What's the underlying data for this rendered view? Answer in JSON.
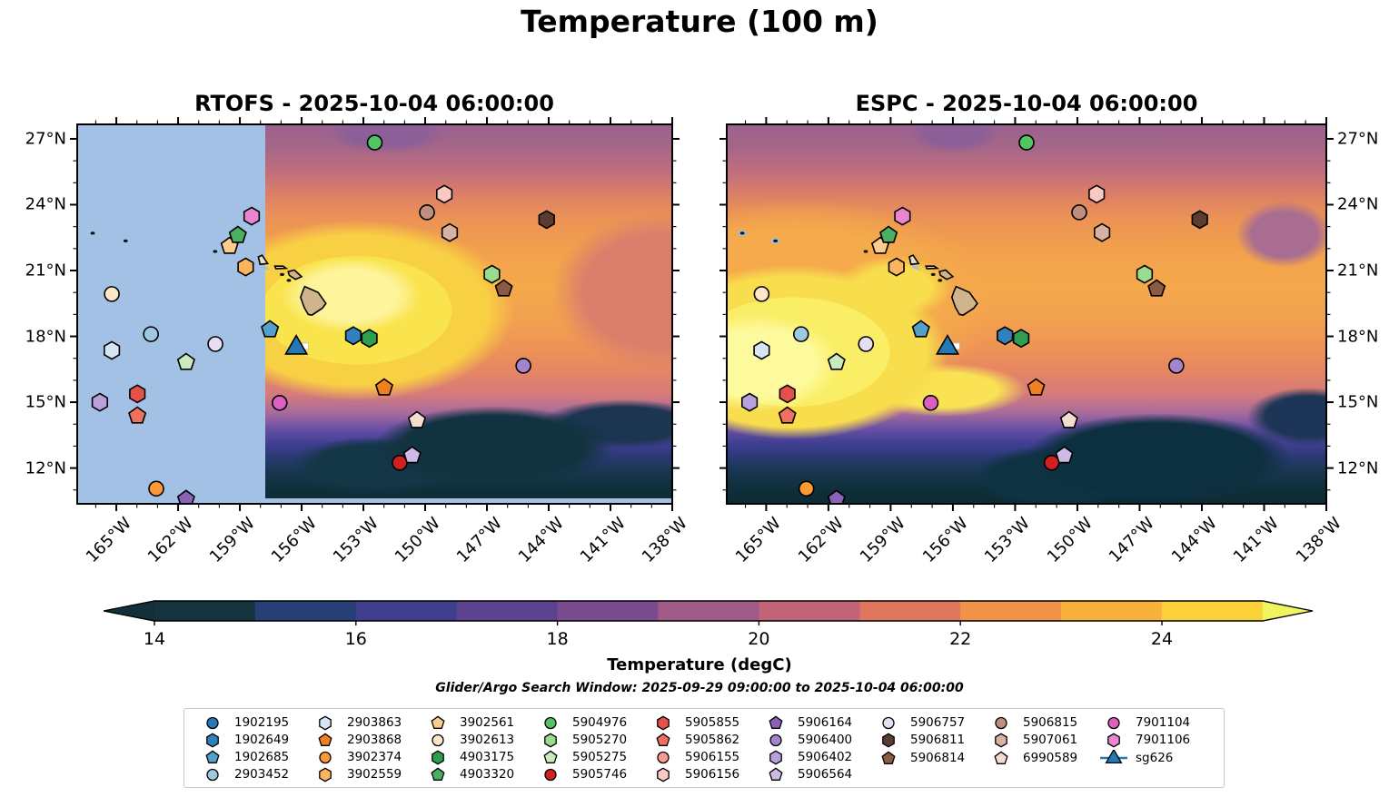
{
  "figure_title": "Temperature (100 m)",
  "panels": [
    {
      "name": "RTOFS",
      "title": "RTOFS - 2025-10-04 06:00:00",
      "model": "RTOFS",
      "valid_time": "2025-10-04 06:00:00",
      "masked": true
    },
    {
      "name": "ESPC",
      "title": "ESPC - 2025-10-04 06:00:00",
      "model": "ESPC",
      "valid_time": "2025-10-04 06:00:00",
      "masked": false
    }
  ],
  "search_window_text": "Glider/Argo Search Window: 2025-09-29 09:00:00 to 2025-10-04 06:00:00",
  "colorbar": {
    "label": "Temperature (degC)",
    "tick_labels": [
      "14",
      "16",
      "18",
      "20",
      "22",
      "24"
    ],
    "tick_values": [
      14,
      16,
      18,
      20,
      22,
      24
    ],
    "range": [
      14,
      25
    ],
    "segment_colors": [
      "#14333c",
      "#263f77",
      "#3f3e8c",
      "#5c428f",
      "#7a4b8e",
      "#a05a87",
      "#c26478",
      "#df765d",
      "#f09247",
      "#f8b13a",
      "#fbd13a"
    ],
    "extend_left_color": "#11303a",
    "extend_right_color": "#eff55e"
  },
  "axes": {
    "lon_tick_labels": [
      "165°W",
      "162°W",
      "159°W",
      "156°W",
      "153°W",
      "150°W",
      "147°W",
      "144°W",
      "141°W",
      "138°W"
    ],
    "lon_tick_values": [
      -165,
      -162,
      -159,
      -156,
      -153,
      -150,
      -147,
      -144,
      -141,
      -138
    ],
    "lon_minor_values": [
      -166,
      -164,
      -163,
      -161,
      -160,
      -158,
      -157,
      -155,
      -154,
      -152,
      -151,
      -149,
      -148,
      -146,
      -145,
      -143,
      -142,
      -140,
      -139
    ],
    "lat_tick_labels": [
      "27°N",
      "24°N",
      "21°N",
      "18°N",
      "15°N",
      "12°N"
    ],
    "lat_tick_values": [
      27,
      24,
      21,
      18,
      15,
      12
    ],
    "lat_minor_values": [
      26,
      25,
      23,
      22,
      20,
      19,
      17,
      16,
      14,
      13,
      11
    ]
  },
  "colors": {
    "rtofs_mask": "#a2c1e4",
    "land": "#d2b48c",
    "small_island": "#e8ddc4",
    "coastline": "#000000",
    "shallow_water": "#93c4e8"
  },
  "legend": {
    "columns": [
      [
        "1902195",
        "1902649",
        "1902685",
        "2903452"
      ],
      [
        "2903863",
        "2903868",
        "3902374",
        "3902559"
      ],
      [
        "3902561",
        "3902613",
        "4903175",
        "4903320"
      ],
      [
        "5904976",
        "5905270",
        "5905275",
        "5905746"
      ],
      [
        "5905855",
        "5905862",
        "5906155",
        "5906156"
      ],
      [
        "5906164",
        "5906400",
        "5906402",
        "5906564"
      ],
      [
        "5906757",
        "5906811",
        "5906814"
      ],
      [
        "5906815",
        "5907061",
        "6990589"
      ],
      [
        "7901104",
        "7901106",
        "sg626"
      ]
    ]
  },
  "chart_data": {
    "type": "heatmap",
    "title": "Temperature (100 m)",
    "units": "degC",
    "colorbar_range": [
      14,
      25
    ],
    "panels": [
      "RTOFS - 2025-10-04 06:00:00",
      "ESPC - 2025-10-04 06:00:00"
    ],
    "lon_range": [
      -166.9,
      -138.0
    ],
    "lat_range": [
      10.37,
      27.66
    ],
    "rtofs_mask_east_edge_lon": -157.77,
    "platforms": [
      {
        "id": "1902195",
        "type": "argo",
        "marker": "circle",
        "color": "#2878b8",
        "lon": null,
        "lat": null,
        "on_map": false
      },
      {
        "id": "1902649",
        "type": "argo",
        "marker": "hexagon",
        "color": "#3181bd",
        "lon": -153.49,
        "lat": 18.03,
        "on_map": true
      },
      {
        "id": "1902685",
        "type": "argo",
        "marker": "pentagon",
        "color": "#54a0cd",
        "lon": -157.54,
        "lat": 18.31,
        "on_map": true
      },
      {
        "id": "2903452",
        "type": "argo",
        "marker": "circle",
        "color": "#9ecae1",
        "lon": -163.32,
        "lat": 18.1,
        "on_map": true
      },
      {
        "id": "2903863",
        "type": "argo",
        "marker": "hexagon",
        "color": "#d6e5f4",
        "lon": -165.22,
        "lat": 17.36,
        "on_map": true
      },
      {
        "id": "2903868",
        "type": "argo",
        "marker": "pentagon",
        "color": "#f07f1e",
        "lon": -151.99,
        "lat": 15.66,
        "on_map": true
      },
      {
        "id": "3902374",
        "type": "argo",
        "marker": "circle",
        "color": "#fb9a35",
        "lon": -163.06,
        "lat": 11.06,
        "on_map": true
      },
      {
        "id": "3902559",
        "type": "argo",
        "marker": "hexagon",
        "color": "#fdb45f",
        "lon": -158.72,
        "lat": 21.16,
        "on_map": true
      },
      {
        "id": "3902561",
        "type": "argo",
        "marker": "pentagon",
        "color": "#fdcc8e",
        "lon": -159.5,
        "lat": 22.11,
        "on_map": true
      },
      {
        "id": "3902613",
        "type": "argo",
        "marker": "circle",
        "color": "#fee6c8",
        "lon": -165.22,
        "lat": 19.93,
        "on_map": true
      },
      {
        "id": "4903175",
        "type": "argo",
        "marker": "hexagon",
        "color": "#2f9e4f",
        "lon": -152.71,
        "lat": 17.91,
        "on_map": true
      },
      {
        "id": "4903320",
        "type": "argo",
        "marker": "pentagon",
        "color": "#4bb062",
        "lon": -159.1,
        "lat": 22.61,
        "on_map": true
      },
      {
        "id": "5904976",
        "type": "argo",
        "marker": "circle",
        "color": "#52c463",
        "lon": -152.45,
        "lat": 26.83,
        "on_map": true
      },
      {
        "id": "5905270",
        "type": "argo",
        "marker": "hexagon",
        "color": "#9adb8d",
        "lon": -146.76,
        "lat": 20.83,
        "on_map": true
      },
      {
        "id": "5905275",
        "type": "argo",
        "marker": "pentagon",
        "color": "#c8ecc0",
        "lon": -161.61,
        "lat": 16.82,
        "on_map": true
      },
      {
        "id": "5905746",
        "type": "argo",
        "marker": "circle",
        "color": "#d21f1f",
        "lon": -151.24,
        "lat": 12.24,
        "on_map": true
      },
      {
        "id": "5905855",
        "type": "argo",
        "marker": "hexagon",
        "color": "#e4504a",
        "lon": -163.98,
        "lat": 15.38,
        "on_map": true
      },
      {
        "id": "5905862",
        "type": "argo",
        "marker": "pentagon",
        "color": "#f07060",
        "lon": -163.98,
        "lat": 14.38,
        "on_map": true
      },
      {
        "id": "5906155",
        "type": "argo",
        "marker": "circle",
        "color": "#f99b92",
        "lon": null,
        "lat": null,
        "on_map": false
      },
      {
        "id": "5906156",
        "type": "argo",
        "marker": "hexagon",
        "color": "#fcc8c2",
        "lon": -149.07,
        "lat": 24.48,
        "on_map": true
      },
      {
        "id": "5906164",
        "type": "argo",
        "marker": "pentagon",
        "color": "#8a63b8",
        "lon": -161.61,
        "lat": 10.58,
        "on_map": true
      },
      {
        "id": "5906400",
        "type": "argo",
        "marker": "circle",
        "color": "#a485cd",
        "lon": -145.23,
        "lat": 16.66,
        "on_map": true
      },
      {
        "id": "5906402",
        "type": "argo",
        "marker": "hexagon",
        "color": "#b9a0da",
        "lon": -165.8,
        "lat": 15.0,
        "on_map": true
      },
      {
        "id": "5906564",
        "type": "argo",
        "marker": "pentagon",
        "color": "#cfbae6",
        "lon": -150.63,
        "lat": 12.57,
        "on_map": true
      },
      {
        "id": "5906757",
        "type": "argo",
        "marker": "circle",
        "color": "#e8def4",
        "lon": -160.19,
        "lat": 17.65,
        "on_map": true
      },
      {
        "id": "5906811",
        "type": "argo",
        "marker": "hexagon",
        "color": "#5c3c30",
        "lon": -144.1,
        "lat": 23.32,
        "on_map": true
      },
      {
        "id": "5906814",
        "type": "argo",
        "marker": "pentagon",
        "color": "#8a5a45",
        "lon": -146.18,
        "lat": 20.17,
        "on_map": true
      },
      {
        "id": "5906815",
        "type": "argo",
        "marker": "circle",
        "color": "#bc8f7f",
        "lon": -149.91,
        "lat": 23.65,
        "on_map": true
      },
      {
        "id": "5907061",
        "type": "argo",
        "marker": "hexagon",
        "color": "#d9b2a3",
        "lon": -148.81,
        "lat": 22.73,
        "on_map": true
      },
      {
        "id": "6990589",
        "type": "argo",
        "marker": "pentagon",
        "color": "#f4dcd0",
        "lon": -150.4,
        "lat": 14.17,
        "on_map": true
      },
      {
        "id": "7901104",
        "type": "argo",
        "marker": "circle",
        "color": "#dd5fc0",
        "lon": -157.07,
        "lat": 14.97,
        "on_map": true
      },
      {
        "id": "7901106",
        "type": "argo",
        "marker": "hexagon",
        "color": "#ea85d2",
        "lon": -158.43,
        "lat": 23.48,
        "on_map": true
      },
      {
        "id": "sg626",
        "type": "glider",
        "marker": "triangle",
        "color": "#2279b5",
        "lon": -156.26,
        "lat": 17.48,
        "on_map": true
      }
    ],
    "glider_waypoint": {
      "lon": -155.83,
      "lat": 17.55,
      "color": "#ffffff",
      "marker": "square"
    },
    "islands": [
      {
        "name": "hawaii-big-island",
        "fill": "land",
        "points": [
          [
            -156.05,
            19.78
          ],
          [
            -155.95,
            20.05
          ],
          [
            -155.85,
            20.27
          ],
          [
            -155.55,
            20.15
          ],
          [
            -155.2,
            20.0
          ],
          [
            -154.82,
            19.5
          ],
          [
            -155.0,
            19.28
          ],
          [
            -155.5,
            18.97
          ],
          [
            -155.68,
            19.0
          ],
          [
            -155.88,
            19.32
          ]
        ]
      },
      {
        "name": "maui",
        "fill": "land",
        "points": [
          [
            -156.65,
            20.95
          ],
          [
            -156.35,
            21.02
          ],
          [
            -156.0,
            20.72
          ],
          [
            -156.3,
            20.6
          ],
          [
            -156.6,
            20.78
          ]
        ]
      },
      {
        "name": "oahu",
        "fill": "small_island",
        "points": [
          [
            -158.1,
            21.62
          ],
          [
            -157.92,
            21.7
          ],
          [
            -157.65,
            21.32
          ],
          [
            -158.02,
            21.28
          ]
        ]
      },
      {
        "name": "kauai",
        "fill": "small_island",
        "points": [
          [
            -159.7,
            22.1
          ],
          [
            -159.45,
            22.2
          ],
          [
            -159.3,
            22.05
          ],
          [
            -159.5,
            21.9
          ],
          [
            -159.68,
            21.95
          ]
        ]
      },
      {
        "name": "molokai",
        "fill": "small_island",
        "points": [
          [
            -157.3,
            21.2
          ],
          [
            -156.9,
            21.2
          ],
          [
            -156.75,
            21.1
          ],
          [
            -157.25,
            21.08
          ]
        ]
      }
    ],
    "islets": [
      {
        "name": "nw-islet-1",
        "lon": -166.15,
        "lat": 22.7,
        "shoal_on_espc": true
      },
      {
        "name": "nw-islet-2",
        "lon": -164.55,
        "lat": 22.35,
        "shoal_on_espc": true
      },
      {
        "name": "niihau",
        "lon": -160.2,
        "lat": 21.87,
        "shoal_on_espc": false
      },
      {
        "name": "lanai",
        "lon": -156.95,
        "lat": 20.82,
        "shoal_on_espc": false
      },
      {
        "name": "kahoolawe",
        "lon": -156.62,
        "lat": 20.55,
        "shoal_on_espc": false
      }
    ],
    "shoals": [
      {
        "name": "penguin-bank",
        "points": [
          [
            -158.05,
            21.3
          ],
          [
            -157.7,
            21.15
          ],
          [
            -157.55,
            21.0
          ],
          [
            -157.9,
            21.1
          ]
        ]
      }
    ]
  }
}
